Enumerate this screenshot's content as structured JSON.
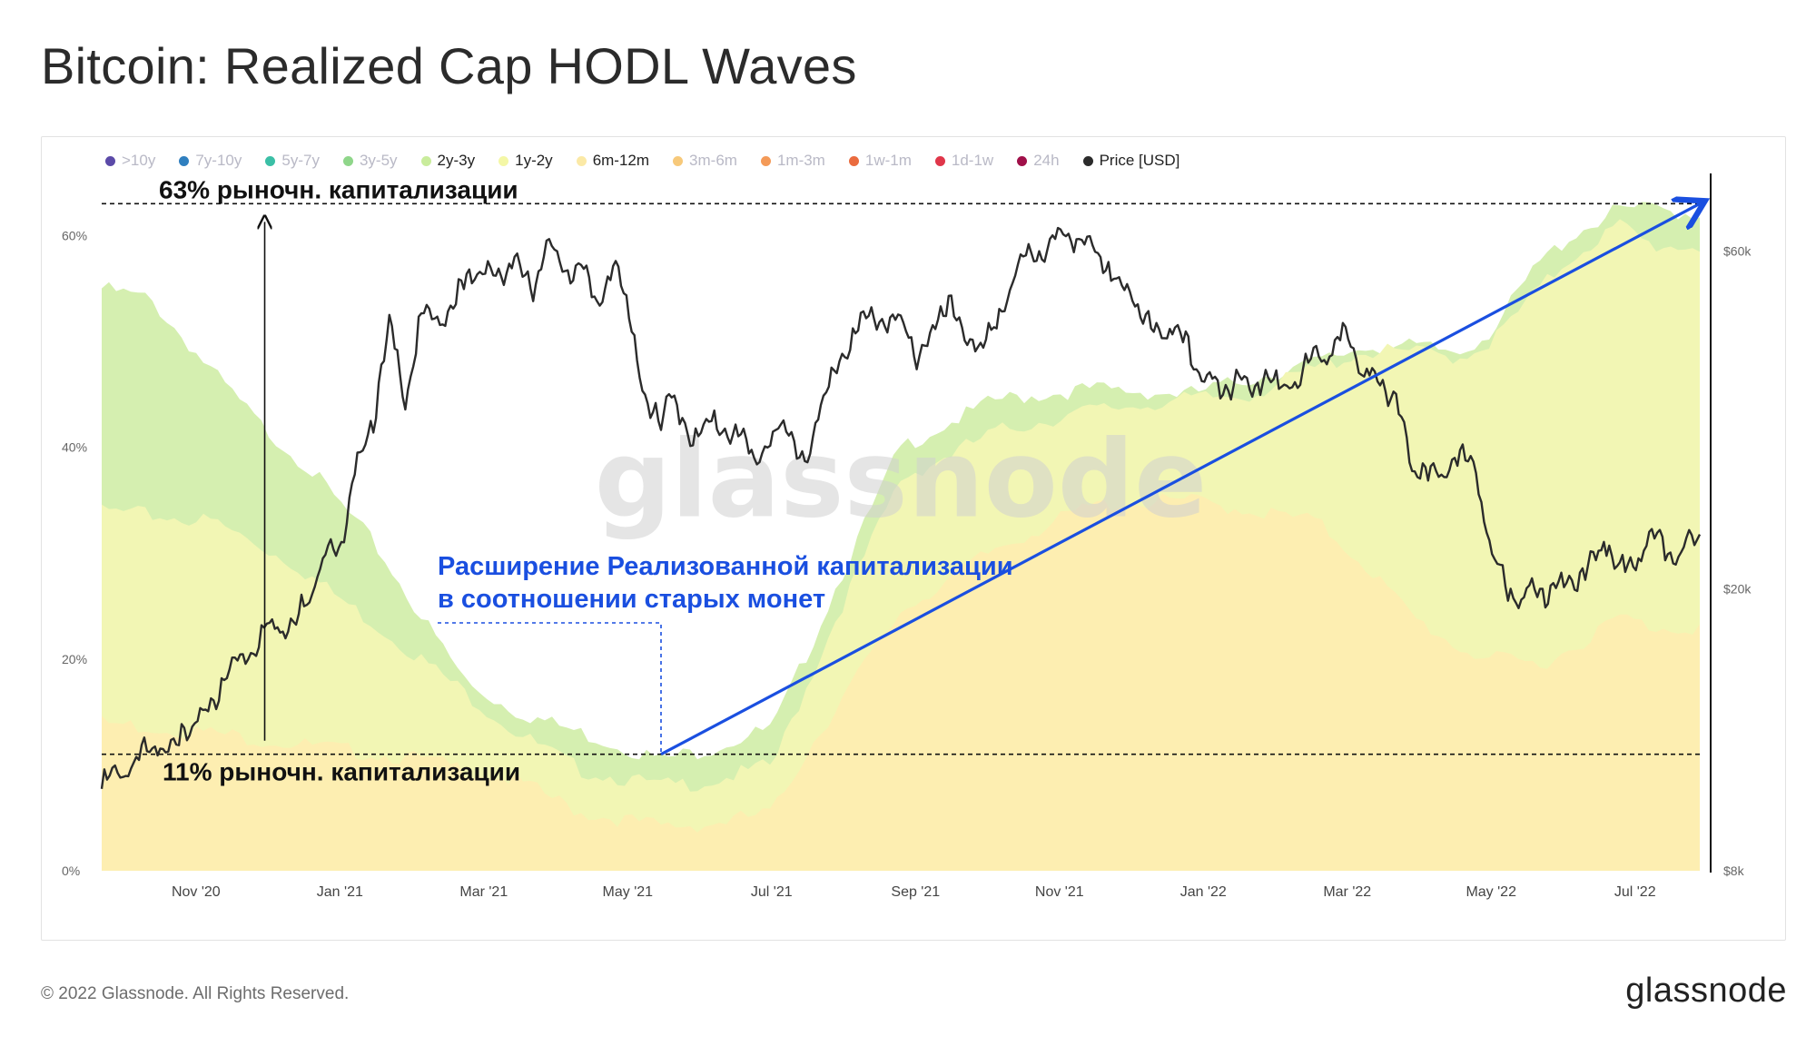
{
  "title": "Bitcoin: Realized Cap HODL Waves",
  "legend": [
    {
      "label": ">10y",
      "color": "#5b4aa8",
      "active": false
    },
    {
      "label": "7y-10y",
      "color": "#2f7fbf",
      "active": false
    },
    {
      "label": "5y-7y",
      "color": "#3bbfa6",
      "active": false
    },
    {
      "label": "3y-5y",
      "color": "#8fd68a",
      "active": false
    },
    {
      "label": "2y-3y",
      "color": "#c9ec9c",
      "active": true
    },
    {
      "label": "1y-2y",
      "color": "#f4f7a6",
      "active": true
    },
    {
      "label": "6m-12m",
      "color": "#fbe9a6",
      "active": true
    },
    {
      "label": "3m-6m",
      "color": "#f7c97a",
      "active": false
    },
    {
      "label": "1m-3m",
      "color": "#f49a58",
      "active": false
    },
    {
      "label": "1w-1m",
      "color": "#ea6b3e",
      "active": false
    },
    {
      "label": "1d-1w",
      "color": "#e0364a",
      "active": false
    },
    {
      "label": "24h",
      "color": "#a01049",
      "active": false
    },
    {
      "label": "Price [USD]",
      "color": "#2b2b2b",
      "active": true
    }
  ],
  "chart_data": {
    "type": "area",
    "title": "Bitcoin: Realized Cap HODL Waves",
    "x_ticks": [
      "Nov '20",
      "Jan '21",
      "Mar '21",
      "May '21",
      "Jul '21",
      "Sep '21",
      "Nov '21",
      "Jan '22",
      "Mar '22",
      "May '22",
      "Jul '22"
    ],
    "y_left_ticks": [
      "0%",
      "20%",
      "40%",
      "60%"
    ],
    "y_left_range": [
      0,
      65
    ],
    "y_right_ticks": [
      "$8k",
      "$20k",
      "$60k"
    ],
    "y_right_scale": "log",
    "y_right_range": [
      8000,
      75000
    ],
    "series": [
      {
        "name": "6m-12m",
        "color": "#fdeeb1",
        "t": [
          0,
          0.07,
          0.12,
          0.2,
          0.26,
          0.3,
          0.35,
          0.38,
          0.42,
          0.44,
          0.46,
          0.5,
          0.56,
          0.62,
          0.68,
          0.72,
          0.76,
          0.79,
          0.82,
          0.85,
          0.87,
          0.9,
          0.92,
          0.95,
          0.97,
          1.0
        ],
        "upper": [
          14,
          13,
          12,
          10.5,
          8.5,
          5.5,
          4.2,
          4.4,
          5.5,
          11,
          15.5,
          24.5,
          30.5,
          34.5,
          35,
          34,
          33,
          29,
          24,
          21,
          20,
          19.5,
          21,
          24,
          23,
          23
        ]
      },
      {
        "name": "1y-2y",
        "color": "#f2f6b4",
        "t": [
          0,
          0.07,
          0.12,
          0.2,
          0.26,
          0.3,
          0.35,
          0.38,
          0.42,
          0.44,
          0.46,
          0.5,
          0.56,
          0.62,
          0.68,
          0.72,
          0.76,
          0.79,
          0.82,
          0.85,
          0.87,
          0.9,
          0.92,
          0.95,
          0.97,
          1.0
        ],
        "upper": [
          34,
          33,
          29,
          20,
          13,
          9.5,
          8,
          8.4,
          10,
          17,
          24,
          37,
          41.5,
          43.5,
          44.5,
          45,
          47.5,
          49,
          49,
          48.5,
          50,
          55,
          58,
          61,
          59,
          59
        ]
      },
      {
        "name": "2y-3y",
        "color": "#d5efb0",
        "t": [
          0,
          0.03,
          0.07,
          0.1,
          0.13,
          0.17,
          0.2,
          0.23,
          0.26,
          0.3,
          0.35,
          0.38,
          0.42,
          0.44,
          0.46,
          0.5,
          0.56,
          0.62,
          0.68,
          0.72,
          0.76,
          0.79,
          0.82,
          0.85,
          0.87,
          0.9,
          0.92,
          0.95,
          0.97,
          1.0
        ],
        "upper": [
          55,
          54,
          47,
          42,
          38,
          31,
          24,
          17.5,
          15,
          13,
          10.5,
          11.5,
          13.5,
          20,
          27,
          40,
          44.5,
          45.5,
          45,
          46.5,
          48,
          49.5,
          49.5,
          49,
          51,
          57.5,
          60,
          62.5,
          62.5,
          62
        ]
      }
    ],
    "price": {
      "name": "Price [USD]",
      "color": "#2b2b2b",
      "t": [
        0,
        0.02,
        0.04,
        0.06,
        0.08,
        0.1,
        0.12,
        0.13,
        0.14,
        0.15,
        0.16,
        0.17,
        0.18,
        0.19,
        0.2,
        0.21,
        0.22,
        0.23,
        0.24,
        0.25,
        0.26,
        0.27,
        0.28,
        0.29,
        0.3,
        0.31,
        0.32,
        0.33,
        0.34,
        0.35,
        0.355,
        0.36,
        0.37,
        0.38,
        0.39,
        0.4,
        0.41,
        0.42,
        0.43,
        0.44,
        0.45,
        0.46,
        0.47,
        0.48,
        0.49,
        0.5,
        0.51,
        0.52,
        0.53,
        0.54,
        0.55,
        0.56,
        0.57,
        0.58,
        0.59,
        0.6,
        0.61,
        0.62,
        0.63,
        0.64,
        0.65,
        0.66,
        0.67,
        0.68,
        0.69,
        0.7,
        0.71,
        0.72,
        0.73,
        0.74,
        0.75,
        0.76,
        0.77,
        0.78,
        0.79,
        0.8,
        0.81,
        0.82,
        0.83,
        0.84,
        0.85,
        0.86,
        0.87,
        0.88,
        0.89,
        0.9,
        0.91,
        0.92,
        0.93,
        0.94,
        0.95,
        0.96,
        0.97,
        0.98,
        0.99,
        1.0
      ],
      "values": [
        10600,
        11600,
        12200,
        13000,
        15500,
        17500,
        18500,
        19300,
        23500,
        23000,
        30500,
        35500,
        47000,
        38000,
        48500,
        49000,
        51000,
        56000,
        57500,
        56000,
        58500,
        55000,
        61000,
        58500,
        56500,
        52000,
        58000,
        50000,
        37000,
        35000,
        38000,
        36000,
        33500,
        34000,
        35000,
        32500,
        31500,
        33000,
        34500,
        30000,
        37000,
        41500,
        47000,
        48500,
        49500,
        47500,
        44000,
        46000,
        52000,
        46000,
        44000,
        48000,
        55500,
        60000,
        62000,
        63000,
        65000,
        60500,
        57000,
        55000,
        49000,
        47500,
        47000,
        44000,
        41000,
        37500,
        41500,
        38000,
        41000,
        39000,
        39500,
        45000,
        43000,
        47000,
        40500,
        39000,
        38500,
        29000,
        30000,
        29500,
        31000,
        30500,
        22000,
        20500,
        19800,
        20000,
        21000,
        20200,
        22000,
        23500,
        21500,
        22500,
        24000,
        23000,
        22800,
        23700
      ]
    },
    "annotations": {
      "top_label": "63% рыночн. капитализации",
      "bottom_label": "11% рыночн. капитализации",
      "note_line1": "Расширение Реализованной капитализации",
      "note_line2": "в соотношении старых монет",
      "top_level_pct": 63,
      "bottom_level_pct": 11,
      "trend_from": {
        "t": 0.35,
        "pct": 11
      },
      "trend_to": {
        "t": 1.0,
        "pct": 63
      }
    },
    "watermark": "glassnode"
  },
  "footer": {
    "copyright": "© 2022 Glassnode. All Rights Reserved.",
    "logo": "glassnode"
  }
}
